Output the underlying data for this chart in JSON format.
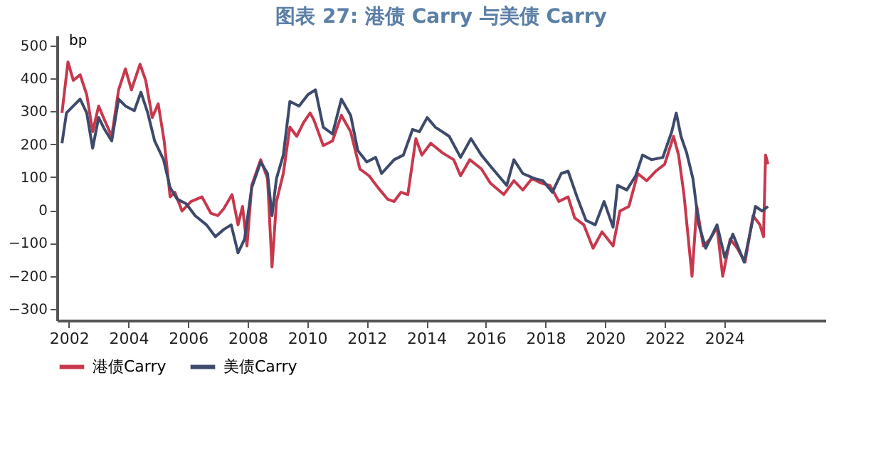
{
  "chart_data": {
    "type": "line",
    "title": "图表 27: 港债 Carry 与美债 Carry",
    "ylabel": "bp",
    "xlim": [
      2001.6,
      2027.4
    ],
    "xticks": [
      2002,
      2004,
      2006,
      2008,
      2010,
      2012,
      2014,
      2016,
      2018,
      2020,
      2022,
      2024
    ],
    "ylim": [
      -335,
      530
    ],
    "yticks": [
      -300,
      -200,
      -100,
      0,
      100,
      200,
      300,
      400,
      500
    ],
    "grid": false,
    "legend": "bottom",
    "line_style": "solid",
    "marker": "none",
    "series": [
      {
        "name": "港债Carry",
        "color": "#c8384d",
        "x": [
          2001.77,
          2001.97,
          2002.15,
          2002.38,
          2002.6,
          2002.8,
          2003.0,
          2003.2,
          2003.44,
          2003.67,
          2003.9,
          2004.1,
          2004.39,
          2004.58,
          2004.8,
          2005.0,
          2005.2,
          2005.4,
          2005.56,
          2005.8,
          2006.1,
          2006.47,
          2006.77,
          2007.0,
          2007.2,
          2007.48,
          2007.68,
          2007.83,
          2007.98,
          2008.14,
          2008.44,
          2008.67,
          2008.82,
          2008.97,
          2009.2,
          2009.42,
          2009.65,
          2009.88,
          2010.1,
          2010.23,
          2010.54,
          2010.85,
          2011.15,
          2011.46,
          2011.77,
          2012.08,
          2012.38,
          2012.7,
          2012.92,
          2013.15,
          2013.38,
          2013.65,
          2013.85,
          2014.15,
          2014.54,
          2014.92,
          2015.15,
          2015.46,
          2015.85,
          2016.15,
          2016.6,
          2016.94,
          2017.24,
          2017.55,
          2017.85,
          2018.15,
          2018.45,
          2018.76,
          2018.98,
          2019.29,
          2019.6,
          2019.9,
          2020.27,
          2020.5,
          2020.8,
          2021.1,
          2021.4,
          2021.7,
          2022.0,
          2022.3,
          2022.47,
          2022.65,
          2022.92,
          2023.08,
          2023.3,
          2023.53,
          2023.76,
          2023.95,
          2024.2,
          2024.44,
          2024.7,
          2024.97,
          2025.2,
          2025.32,
          2025.39,
          2025.47
        ],
        "values": [
          295,
          450,
          394,
          411,
          351,
          238,
          316,
          273,
          224,
          365,
          429,
          365,
          443,
          394,
          281,
          323,
          210,
          40,
          54,
          -3,
          26,
          40,
          -10,
          -17,
          4,
          47,
          -45,
          11,
          -109,
          75,
          153,
          96,
          -173,
          26,
          111,
          252,
          224,
          266,
          295,
          273,
          196,
          210,
          288,
          238,
          125,
          104,
          68,
          33,
          26,
          54,
          47,
          217,
          167,
          203,
          174,
          153,
          104,
          153,
          125,
          82,
          47,
          89,
          61,
          96,
          82,
          75,
          26,
          40,
          -24,
          -45,
          -116,
          -66,
          -109,
          -3,
          11,
          111,
          89,
          118,
          139,
          224,
          167,
          47,
          -201,
          11,
          -109,
          -88,
          -52,
          -201,
          -88,
          -116,
          -158,
          -17,
          -45,
          -81,
          167,
          139
        ]
      },
      {
        "name": "美债Carry",
        "color": "#3d4a6b",
        "x": [
          2001.77,
          2001.92,
          2002.15,
          2002.38,
          2002.6,
          2002.8,
          2003.0,
          2003.2,
          2003.44,
          2003.67,
          2003.9,
          2004.2,
          2004.42,
          2004.65,
          2004.88,
          2005.18,
          2005.4,
          2005.64,
          2005.94,
          2006.24,
          2006.62,
          2006.92,
          2007.2,
          2007.45,
          2007.68,
          2007.9,
          2008.14,
          2008.44,
          2008.67,
          2008.82,
          2008.97,
          2009.2,
          2009.42,
          2009.73,
          2010.03,
          2010.28,
          2010.54,
          2010.85,
          2011.15,
          2011.46,
          2011.7,
          2012.0,
          2012.3,
          2012.5,
          2012.92,
          2013.23,
          2013.54,
          2013.77,
          2014.03,
          2014.3,
          2014.77,
          2015.15,
          2015.5,
          2015.85,
          2016.23,
          2016.7,
          2016.94,
          2017.24,
          2017.62,
          2017.92,
          2018.23,
          2018.53,
          2018.76,
          2019.06,
          2019.36,
          2019.67,
          2019.97,
          2020.27,
          2020.42,
          2020.73,
          2021.03,
          2021.26,
          2021.56,
          2021.94,
          2022.24,
          2022.39,
          2022.55,
          2022.74,
          2022.95,
          2023.15,
          2023.38,
          2023.76,
          2024.02,
          2024.29,
          2024.67,
          2025.05,
          2025.27,
          2025.47
        ],
        "values": [
          203,
          295,
          316,
          337,
          295,
          188,
          281,
          245,
          210,
          337,
          316,
          302,
          358,
          295,
          210,
          153,
          68,
          33,
          19,
          -17,
          -45,
          -81,
          -59,
          -45,
          -130,
          -88,
          68,
          146,
          111,
          -17,
          96,
          167,
          330,
          316,
          351,
          365,
          252,
          231,
          337,
          288,
          181,
          146,
          160,
          111,
          153,
          167,
          245,
          238,
          281,
          252,
          224,
          160,
          217,
          167,
          125,
          75,
          153,
          111,
          96,
          89,
          54,
          111,
          118,
          40,
          -31,
          -45,
          26,
          -52,
          75,
          61,
          104,
          167,
          153,
          160,
          238,
          295,
          224,
          174,
          96,
          -45,
          -116,
          -45,
          -144,
          -73,
          -158,
          11,
          -3,
          11
        ]
      }
    ]
  }
}
